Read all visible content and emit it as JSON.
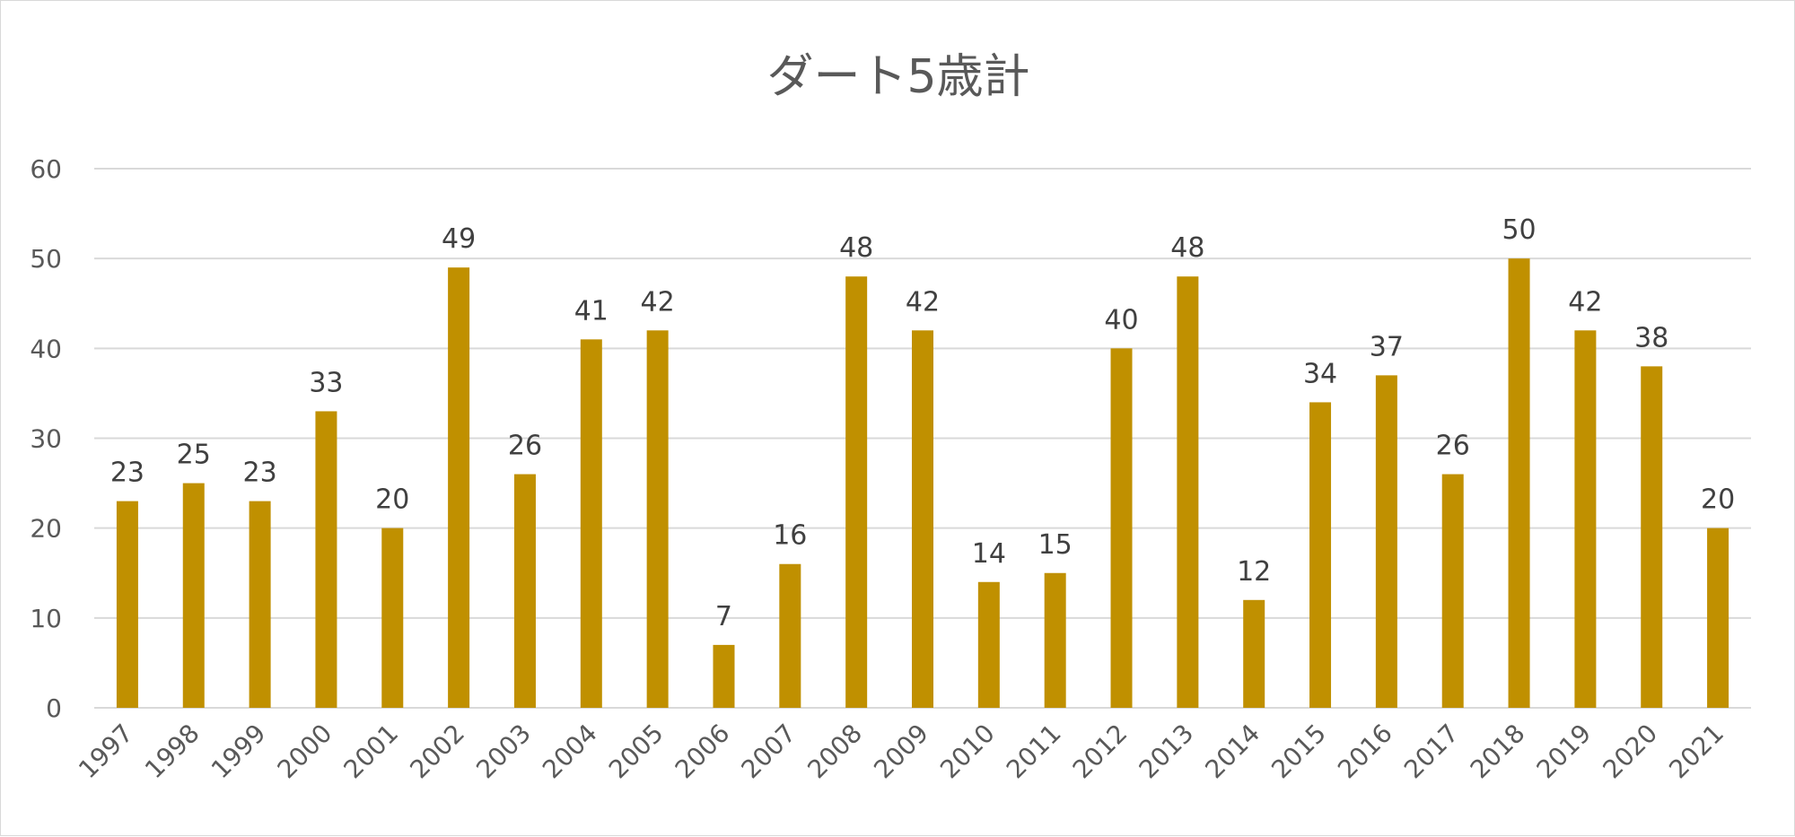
{
  "chart_data": {
    "type": "bar",
    "title": "ダート5歳計",
    "xlabel": "",
    "ylabel": "",
    "categories": [
      "1997",
      "1998",
      "1999",
      "2000",
      "2001",
      "2002",
      "2003",
      "2004",
      "2005",
      "2006",
      "2007",
      "2008",
      "2009",
      "2010",
      "2011",
      "2012",
      "2013",
      "2014",
      "2015",
      "2016",
      "2017",
      "2018",
      "2019",
      "2020",
      "2021"
    ],
    "values": [
      23,
      25,
      23,
      33,
      20,
      49,
      26,
      41,
      42,
      7,
      16,
      48,
      42,
      14,
      15,
      40,
      48,
      12,
      34,
      37,
      26,
      50,
      42,
      38,
      20
    ],
    "ylim": [
      0,
      60
    ],
    "yticks": [
      0,
      10,
      20,
      30,
      40,
      50,
      60
    ],
    "bar_color": "#C09000",
    "grid": true,
    "legend": "none",
    "data_labels": true
  }
}
